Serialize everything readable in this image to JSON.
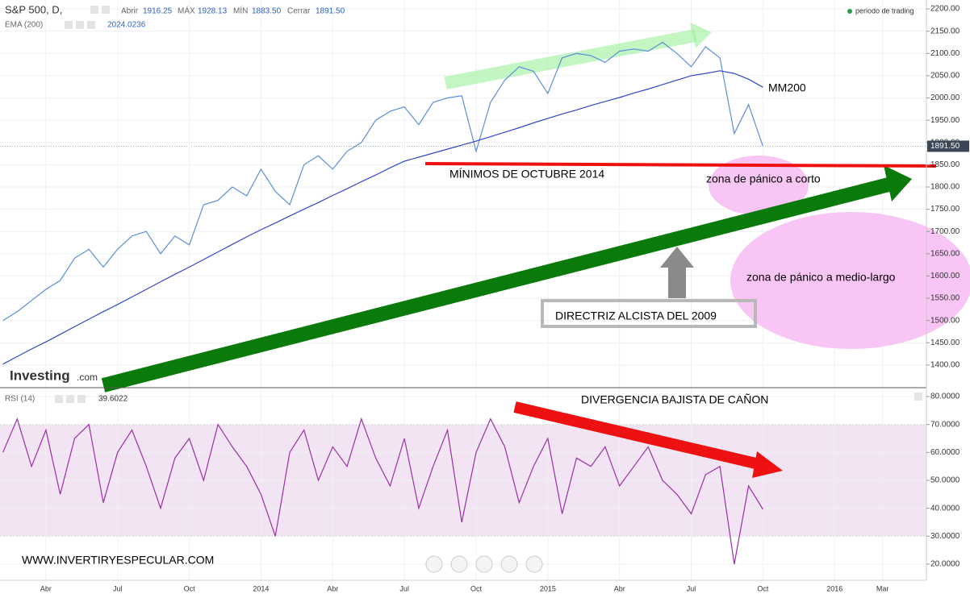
{
  "header": {
    "open_label": "Abrir",
    "open": "1916.25",
    "high_label": "MÁX",
    "high": "1928.13",
    "low_label": "MÍN",
    "low": "1883.50",
    "close_label": "Cerrar",
    "close": "1891.50",
    "session": "periodo de trading"
  },
  "logo": {
    "name": "Investing",
    "suffix": ".com"
  },
  "website": "WWW.INVERTIRYESPECULAR.COM",
  "annotations": {
    "ma": "MM200",
    "support": "MÍNIMOS DE OCTUBRE 2014",
    "short_zone": "zona de pánico a corto",
    "long_zone": "zona de pánico a medio-largo",
    "trendline": "DIRECTRIZ ALCISTA DEL 2009",
    "divergence": "DIVERGENCIA BAJISTA DE CAÑON"
  },
  "chart_data": [
    {
      "type": "line",
      "x": [
        2013.1,
        2013.15,
        2013.2,
        2013.25,
        2013.3,
        2013.35,
        2013.4,
        2013.45,
        2013.5,
        2013.55,
        2013.6,
        2013.65,
        2013.7,
        2013.75,
        2013.8,
        2013.85,
        2013.9,
        2013.95,
        2014.0,
        2014.05,
        2014.1,
        2014.15,
        2014.2,
        2014.25,
        2014.3,
        2014.35,
        2014.4,
        2014.45,
        2014.5,
        2014.55,
        2014.6,
        2014.65,
        2014.7,
        2014.75,
        2014.8,
        2014.85,
        2014.9,
        2014.95,
        2015.0,
        2015.05,
        2015.1,
        2015.15,
        2015.2,
        2015.25,
        2015.3,
        2015.35,
        2015.4,
        2015.45,
        2015.5,
        2015.55,
        2015.6,
        2015.65,
        2015.7,
        2015.75
      ],
      "series": [
        {
          "name": "S&P 500, D,",
          "color": "#5b8fd9",
          "values": [
            1500,
            1520,
            1545,
            1570,
            1590,
            1640,
            1660,
            1620,
            1660,
            1690,
            1700,
            1650,
            1690,
            1670,
            1760,
            1770,
            1800,
            1780,
            1840,
            1790,
            1760,
            1850,
            1870,
            1840,
            1880,
            1900,
            1950,
            1970,
            1980,
            1940,
            1990,
            2000,
            2005,
            1880,
            1990,
            2040,
            2070,
            2060,
            2010,
            2090,
            2100,
            2095,
            2080,
            2105,
            2110,
            2105,
            2125,
            2100,
            2070,
            2115,
            2090,
            1920,
            1985,
            1891.5
          ]
        },
        {
          "name": "EMA (200)",
          "color": "#3346c8",
          "values": [
            1402,
            1419,
            1436,
            1452,
            1469,
            1486,
            1503,
            1520,
            1536,
            1553,
            1570,
            1587,
            1604,
            1620,
            1637,
            1654,
            1671,
            1688,
            1704,
            1719,
            1735,
            1750,
            1765,
            1781,
            1796,
            1812,
            1827,
            1843,
            1858,
            1867,
            1876,
            1885,
            1894,
            1903,
            1913,
            1923,
            1933,
            1944,
            1954,
            1964,
            1973,
            1983,
            1992,
            2001,
            2011,
            2020,
            2030,
            2040,
            2050,
            2055,
            2061,
            2055,
            2042,
            2024.0236
          ]
        }
      ],
      "xlim": [
        2013.09,
        2016.32
      ],
      "ylim": [
        1351,
        2220
      ],
      "yticks": [
        {
          "value": 2200,
          "label": "2200.00"
        },
        {
          "value": 2150,
          "label": "2150.00"
        },
        {
          "value": 2100,
          "label": "2100.00"
        },
        {
          "value": 2050,
          "label": "2050.00"
        },
        {
          "value": 2000,
          "label": "2000.00"
        },
        {
          "value": 1950,
          "label": "1950.00"
        },
        {
          "value": 1900,
          "label": "1900.00"
        },
        {
          "value": 1850,
          "label": "1850.00"
        },
        {
          "value": 1800,
          "label": "1800.00"
        },
        {
          "value": 1750,
          "label": "1750.00"
        },
        {
          "value": 1700,
          "label": "1700.00"
        },
        {
          "value": 1650,
          "label": "1650.00"
        },
        {
          "value": 1600,
          "label": "1600.00"
        },
        {
          "value": 1550,
          "label": "1550.00"
        },
        {
          "value": 1500,
          "label": "1500.00"
        },
        {
          "value": 1450,
          "label": "1450.00"
        },
        {
          "value": 1400,
          "label": "1400.00"
        }
      ],
      "grid": true
    },
    {
      "type": "line",
      "x": [
        2013.1,
        2013.15,
        2013.2,
        2013.25,
        2013.3,
        2013.35,
        2013.4,
        2013.45,
        2013.5,
        2013.55,
        2013.6,
        2013.65,
        2013.7,
        2013.75,
        2013.8,
        2013.85,
        2013.9,
        2013.95,
        2014.0,
        2014.05,
        2014.1,
        2014.15,
        2014.2,
        2014.25,
        2014.3,
        2014.35,
        2014.4,
        2014.45,
        2014.5,
        2014.55,
        2014.6,
        2014.65,
        2014.7,
        2014.75,
        2014.8,
        2014.85,
        2014.9,
        2014.95,
        2015.0,
        2015.05,
        2015.1,
        2015.15,
        2015.2,
        2015.25,
        2015.3,
        2015.35,
        2015.4,
        2015.45,
        2015.5,
        2015.55,
        2015.6,
        2015.65,
        2015.7,
        2015.75
      ],
      "series": [
        {
          "name": "RSI (14)",
          "color": "#9a2fa6",
          "values": [
            60,
            72,
            55,
            68,
            45,
            65,
            70,
            42,
            60,
            68,
            55,
            40,
            58,
            65,
            50,
            70,
            62,
            55,
            45,
            30,
            60,
            68,
            50,
            62,
            55,
            72,
            58,
            48,
            65,
            40,
            55,
            68,
            35,
            60,
            72,
            62,
            42,
            55,
            65,
            38,
            58,
            55,
            62,
            48,
            55,
            62,
            50,
            45,
            38,
            52,
            55,
            20,
            48,
            39.6022
          ]
        }
      ],
      "xlim": [
        2013.09,
        2016.32
      ],
      "ylim": [
        14.2,
        82.9
      ],
      "yticks": [
        {
          "value": 80,
          "label": "80.0000"
        },
        {
          "value": 70,
          "label": "70.0000"
        },
        {
          "value": 60,
          "label": "60.0000"
        },
        {
          "value": 50,
          "label": "50.0000"
        },
        {
          "value": 40,
          "label": "40.0000"
        },
        {
          "value": 30,
          "label": "30.0000"
        },
        {
          "value": 20,
          "label": "20.0000"
        }
      ],
      "band": [
        30,
        70
      ],
      "xticks": [
        {
          "value": 2013.25,
          "label": "Abr"
        },
        {
          "value": 2013.5,
          "label": "Jul"
        },
        {
          "value": 2013.75,
          "label": "Oct"
        },
        2014,
        {
          "value": 2014.25,
          "label": "Abr"
        },
        {
          "value": 2014.5,
          "label": "Jul"
        },
        {
          "value": 2014.75,
          "label": "Oct"
        },
        2015,
        {
          "value": 2015.25,
          "label": "Abr"
        },
        {
          "value": 2015.5,
          "label": "Jul"
        },
        {
          "value": 2015.75,
          "label": "Oct"
        },
        2016,
        {
          "value": 2016.167,
          "label": "Mar"
        }
      ],
      "grid": true
    }
  ]
}
